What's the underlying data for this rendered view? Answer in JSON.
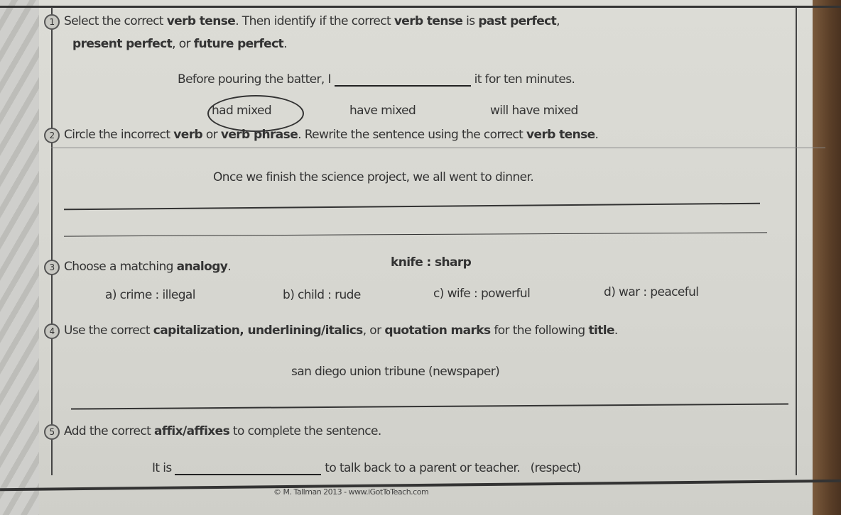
{
  "q1": {
    "number": "1",
    "instr_a": "Select the correct ",
    "instr_b": "verb tense",
    "instr_c": ". Then identify if the correct ",
    "instr_d": "verb tense",
    "instr_e": " is ",
    "instr_f": "past perfect",
    "instr_g": ",",
    "instr2_a": "present perfect",
    "instr2_b": ", or ",
    "instr2_c": "future perfect",
    "instr2_d": ".",
    "sentence_start": "Before pouring the batter, I",
    "sentence_end": "it for ten minutes.",
    "options": [
      "had mixed",
      "have mixed",
      "will have mixed"
    ],
    "selected": "had mixed"
  },
  "q2": {
    "number": "2",
    "instr_a": "Circle the incorrect ",
    "instr_b": "verb",
    "instr_c": " or ",
    "instr_d": "verb phrase",
    "instr_e": ". Rewrite the sentence using the correct ",
    "instr_f": "verb tense",
    "instr_g": ".",
    "sentence": "Once we finish the science project, we all went to dinner."
  },
  "q3": {
    "number": "3",
    "instr_a": "Choose a matching ",
    "instr_b": "analogy",
    "instr_c": ".",
    "prompt": "knife : sharp",
    "options": [
      "a) crime : illegal",
      "b) child : rude",
      "c) wife : powerful",
      "d) war : peaceful"
    ]
  },
  "q4": {
    "number": "4",
    "instr_a": "Use the correct ",
    "instr_b": "capitalization, underlining/italics",
    "instr_c": ", or ",
    "instr_d": "quotation marks",
    "instr_e": " for the following ",
    "instr_f": "title",
    "instr_g": ".",
    "title": "san diego union tribune (newspaper)"
  },
  "q5": {
    "number": "5",
    "instr_a": "Add the correct ",
    "instr_b": "affix/affixes",
    "instr_c": " to complete the sentence.",
    "sentence_start": "It is",
    "sentence_end": "to talk back to a parent or teacher.",
    "hint": "(respect)"
  },
  "footer": "© M. Tallman 2013 - www.iGotToTeach.com"
}
